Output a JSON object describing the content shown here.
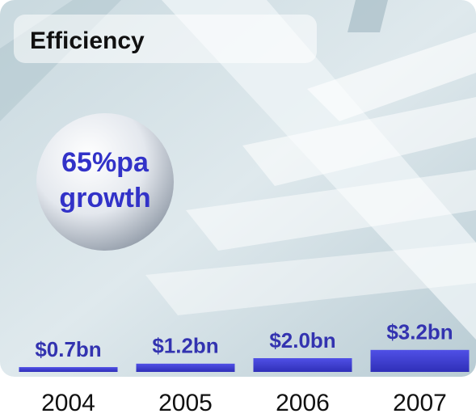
{
  "chart_data": {
    "type": "bar",
    "title": "Efficiency",
    "annotation": [
      "65%pa",
      "growth"
    ],
    "categories": [
      "2004",
      "2005",
      "2006",
      "2007"
    ],
    "values": [
      0.7,
      1.2,
      2.0,
      3.2
    ],
    "value_labels": [
      "$0.7bn",
      "$1.2bn",
      "$2.0bn",
      "$3.2bn"
    ],
    "color": "#3b3bd4"
  }
}
